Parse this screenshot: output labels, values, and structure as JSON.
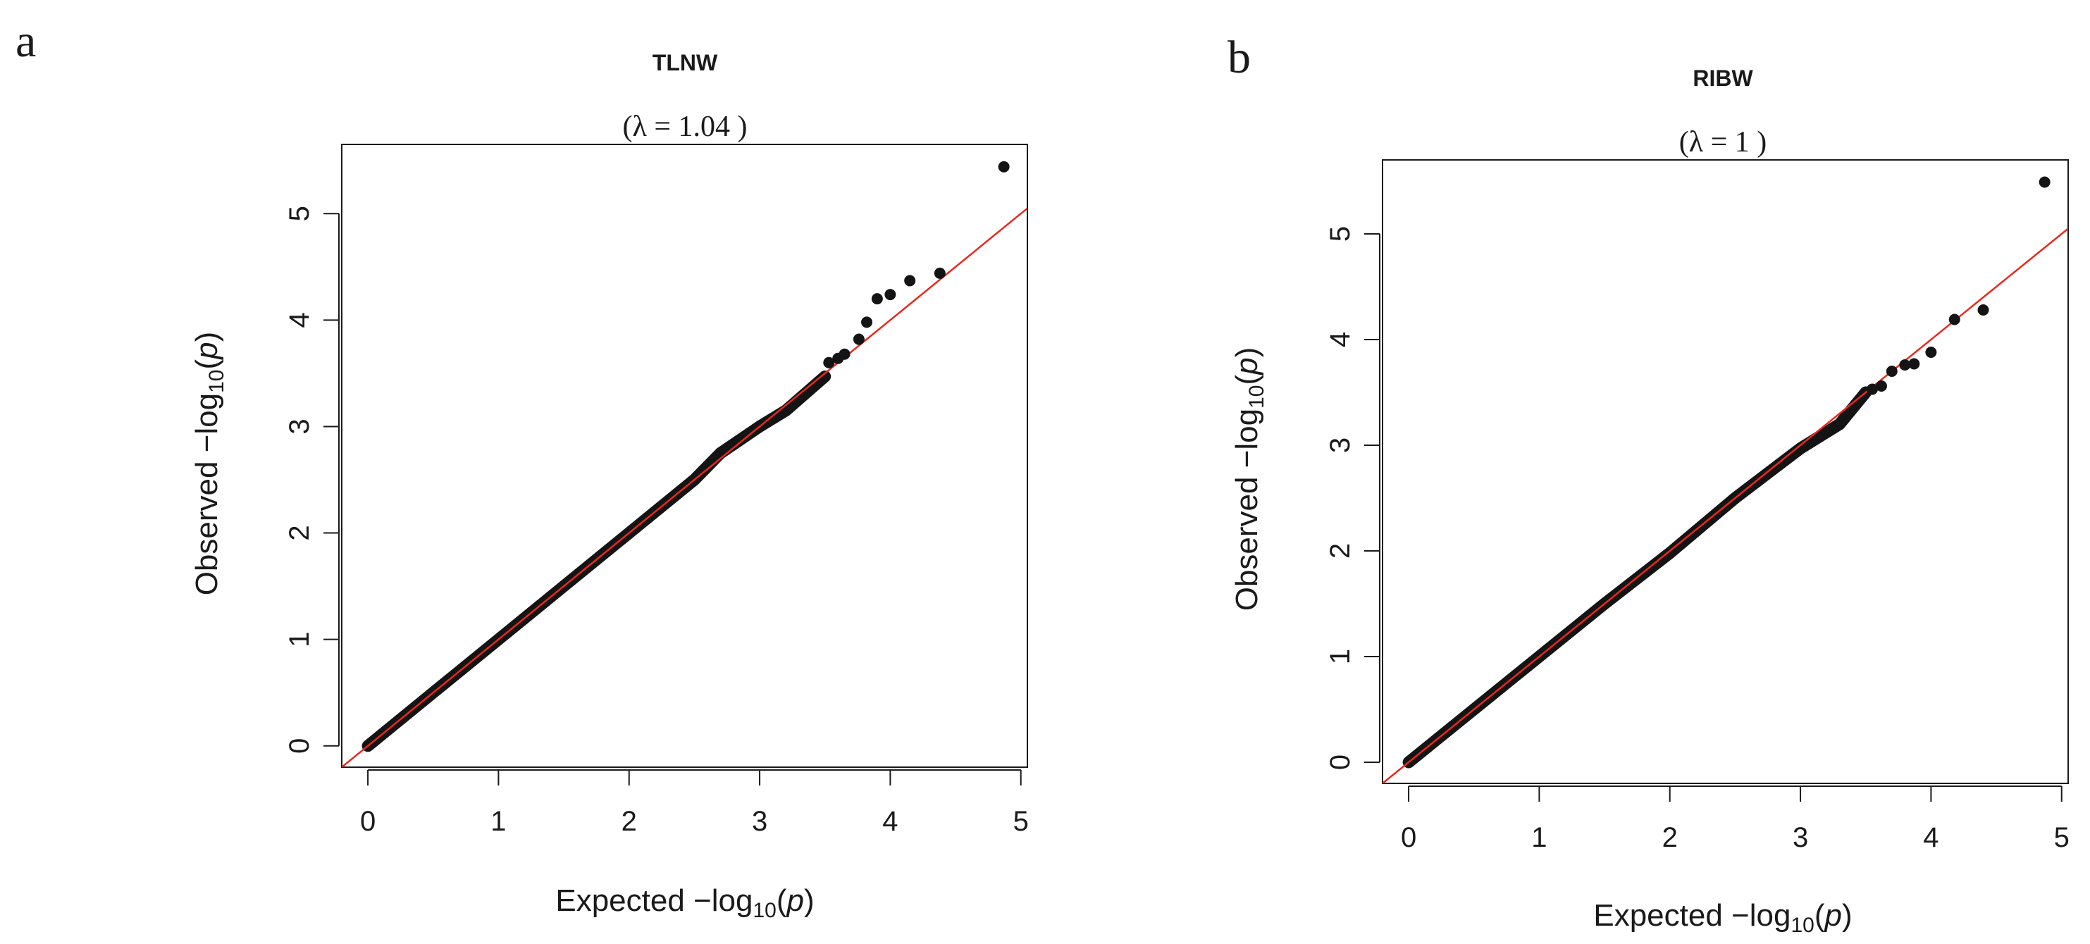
{
  "chart_data": [
    {
      "type": "scatter",
      "panel_label": "a",
      "title": "TLNW",
      "subtitle": "(λ =  1.04 )",
      "xlabel": {
        "prefix": "Expected  −log",
        "sub": "10",
        "open": "(",
        "var": "p",
        "close": ")"
      },
      "ylabel": {
        "prefix": "Observed  −log",
        "sub": "10",
        "open": "(",
        "var": "p",
        "close": ")"
      },
      "xlim": [
        -0.2,
        5.05
      ],
      "ylim": [
        -0.2,
        5.65
      ],
      "xticks": [
        0,
        1,
        2,
        3,
        4,
        5
      ],
      "yticks": [
        0,
        1,
        2,
        3,
        4,
        5
      ],
      "reference_line": {
        "slope": 1,
        "intercept": 0,
        "color": "#e8281e"
      },
      "point_color": "#141414",
      "series": [
        {
          "curve": [
            [
              0,
              0
            ],
            [
              0.5,
              0.5
            ],
            [
              1.0,
              1.0
            ],
            [
              1.5,
              1.5
            ],
            [
              2.0,
              2.0
            ],
            [
              2.5,
              2.5
            ],
            [
              2.7,
              2.75
            ],
            [
              3.0,
              3.0
            ],
            [
              3.2,
              3.15
            ],
            [
              3.5,
              3.47
            ]
          ],
          "points": [
            {
              "x": 3.53,
              "y": 3.6
            },
            {
              "x": 3.6,
              "y": 3.64
            },
            {
              "x": 3.65,
              "y": 3.68
            },
            {
              "x": 3.76,
              "y": 3.82
            },
            {
              "x": 3.82,
              "y": 3.98
            },
            {
              "x": 3.9,
              "y": 4.2
            },
            {
              "x": 4.0,
              "y": 4.24
            },
            {
              "x": 4.15,
              "y": 4.37
            },
            {
              "x": 4.38,
              "y": 4.44
            },
            {
              "x": 4.87,
              "y": 5.44
            }
          ]
        }
      ]
    },
    {
      "type": "scatter",
      "panel_label": "b",
      "title": "RIBW",
      "subtitle": "(λ =  1 )",
      "xlabel": {
        "prefix": "Expected  −log",
        "sub": "10",
        "open": "(",
        "var": "p",
        "close": ")"
      },
      "ylabel": {
        "prefix": "Observed  −log",
        "sub": "10",
        "open": "(",
        "var": "p",
        "close": ")"
      },
      "xlim": [
        -0.2,
        5.05
      ],
      "ylim": [
        -0.2,
        5.7
      ],
      "xticks": [
        0,
        1,
        2,
        3,
        4,
        5
      ],
      "yticks": [
        0,
        1,
        2,
        3,
        4,
        5
      ],
      "reference_line": {
        "slope": 1,
        "intercept": 0,
        "color": "#e8281e"
      },
      "point_color": "#141414",
      "series": [
        {
          "curve": [
            [
              0,
              0
            ],
            [
              0.5,
              0.5
            ],
            [
              1.0,
              1.0
            ],
            [
              1.5,
              1.5
            ],
            [
              2.0,
              1.98
            ],
            [
              2.5,
              2.5
            ],
            [
              3.0,
              2.97
            ],
            [
              3.3,
              3.2
            ],
            [
              3.5,
              3.5
            ]
          ],
          "points": [
            {
              "x": 3.55,
              "y": 3.53
            },
            {
              "x": 3.62,
              "y": 3.56
            },
            {
              "x": 3.7,
              "y": 3.7
            },
            {
              "x": 3.8,
              "y": 3.76
            },
            {
              "x": 3.87,
              "y": 3.77
            },
            {
              "x": 4.0,
              "y": 3.88
            },
            {
              "x": 4.18,
              "y": 4.19
            },
            {
              "x": 4.4,
              "y": 4.28
            },
            {
              "x": 4.87,
              "y": 5.49
            }
          ]
        }
      ]
    }
  ]
}
